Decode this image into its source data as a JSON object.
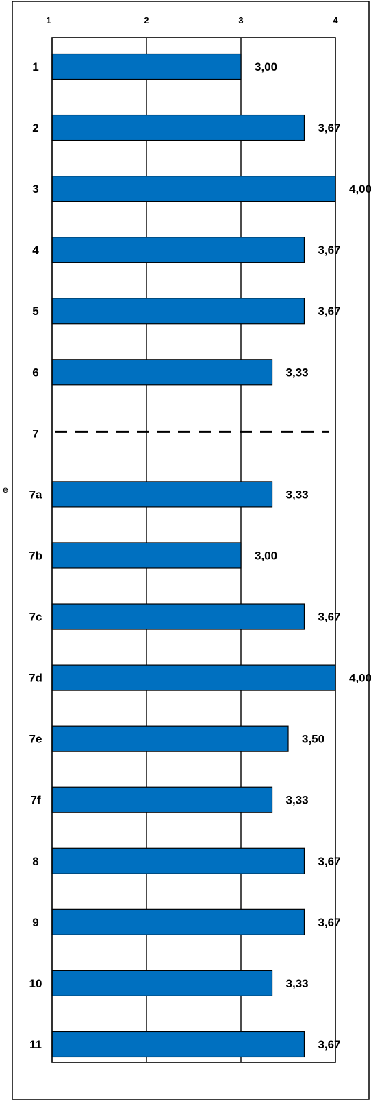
{
  "chart_data": {
    "type": "bar",
    "orientation": "horizontal",
    "categories": [
      "1",
      "2",
      "3",
      "4",
      "5",
      "6",
      "7",
      "7a",
      "7b",
      "7c",
      "7d",
      "7e",
      "7f",
      "8",
      "9",
      "10",
      "11"
    ],
    "values": [
      3.0,
      3.67,
      4.0,
      3.67,
      3.67,
      3.33,
      null,
      3.33,
      3.0,
      3.67,
      4.0,
      3.5,
      3.33,
      3.67,
      3.67,
      3.33,
      3.67
    ],
    "value_labels": [
      "3,00",
      "3,67",
      "4,00",
      "3,67",
      "3,67",
      "3,33",
      "",
      "3,33",
      "3,00",
      "3,67",
      "4,00",
      "3,50",
      "3,33",
      "3,67",
      "3,67",
      "3,33",
      "3,67"
    ],
    "dashed_categories": [
      "7"
    ],
    "x_ticks": [
      1,
      2,
      3,
      4
    ],
    "x_tick_labels": [
      "1",
      "2",
      "3",
      "4"
    ],
    "xlim": [
      1,
      4
    ],
    "x_axis_position": "top",
    "grid": true,
    "legend": "none",
    "bar_color": "#0070C0",
    "title": "",
    "xlabel": "",
    "ylabel": ""
  },
  "side_text": "e"
}
